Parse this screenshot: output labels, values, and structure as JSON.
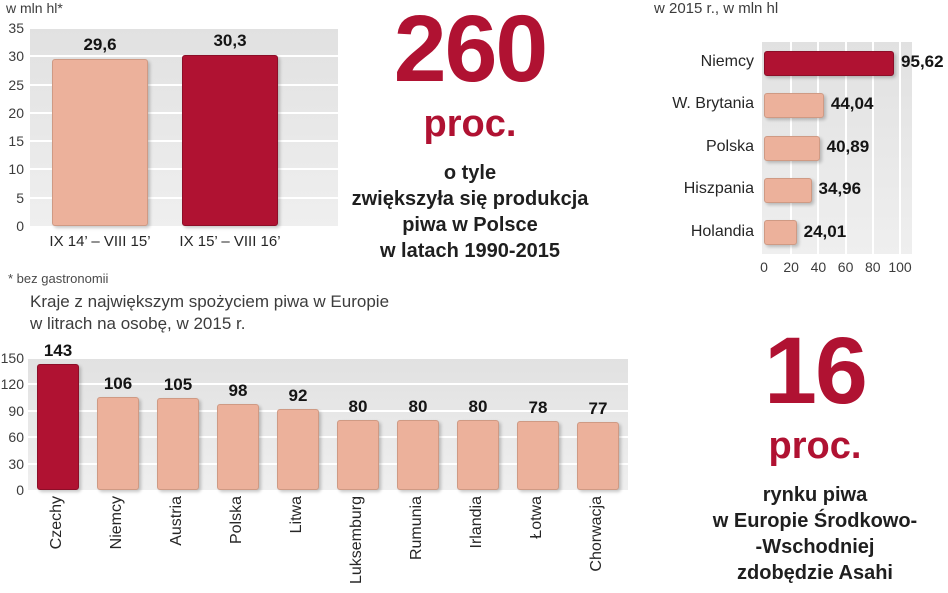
{
  "colors": {
    "accent": "#b01232",
    "accent_border": "#8c0e28",
    "bar_light": "#ecb19b",
    "bar_light_border": "#cf9a84",
    "panel": "#e8e8e8",
    "text_dark": "#1f1f1f",
    "text_muted": "#3c3c3c"
  },
  "chart_data": [
    {
      "type": "bar",
      "title": "w mln hl*",
      "footnote": "* bez gastronomii",
      "categories": [
        "IX 14’ – VIII 15’",
        "IX 15’ – VIII 16’"
      ],
      "values": [
        29.6,
        30.3
      ],
      "value_labels": [
        "29,6",
        "30,3"
      ],
      "bar_colors": [
        "light",
        "accent"
      ],
      "ylim": [
        0,
        35
      ],
      "yticks": [
        0,
        5,
        10,
        15,
        20,
        25,
        30,
        35
      ],
      "grid": true,
      "legend": false
    },
    {
      "type": "bar-horizontal",
      "title": "w 2015 r., w mln hl",
      "categories": [
        "Niemcy",
        "W. Brytania",
        "Polska",
        "Hiszpania",
        "Holandia"
      ],
      "values": [
        95.62,
        44.04,
        40.89,
        34.96,
        24.01
      ],
      "value_labels": [
        "95,62",
        "44,04",
        "40,89",
        "34,96",
        "24,01"
      ],
      "bar_colors": [
        "accent",
        "light",
        "light",
        "light",
        "light"
      ],
      "xlim": [
        0,
        100
      ],
      "xticks": [
        0,
        20,
        40,
        60,
        80,
        100
      ],
      "grid": true,
      "legend": false
    },
    {
      "type": "bar",
      "title_lines": [
        "Kraje z największym spożyciem piwa w Europie",
        "w litrach na osobę, w 2015 r."
      ],
      "categories": [
        "Czechy",
        "Niemcy",
        "Austria",
        "Polska",
        "Litwa",
        "Luksemburg",
        "Rumunia",
        "Irlandia",
        "Łotwa",
        "Chorwacja"
      ],
      "values": [
        143,
        106,
        105,
        98,
        92,
        80,
        80,
        80,
        78,
        77
      ],
      "value_labels": [
        "143",
        "106",
        "105",
        "98",
        "92",
        "80",
        "80",
        "80",
        "78",
        "77"
      ],
      "bar_colors": [
        "accent",
        "light",
        "light",
        "light",
        "light",
        "light",
        "light",
        "light",
        "light",
        "light"
      ],
      "ylim": [
        0,
        150
      ],
      "yticks": [
        0,
        30,
        60,
        90,
        120,
        150
      ],
      "grid": true,
      "xlabel_rotation": 90,
      "legend": false
    }
  ],
  "stats": [
    {
      "number": "260",
      "unit": "proc.",
      "lines": [
        "o tyle",
        "zwiększyła się produkcja",
        "piwa w Polsce",
        "w latach 1990-2015"
      ]
    },
    {
      "number": "16",
      "unit": "proc.",
      "lines": [
        "rynku piwa",
        "w Europie Środkowo-",
        "-Wschodniej",
        "zdobędzie Asahi"
      ]
    }
  ]
}
